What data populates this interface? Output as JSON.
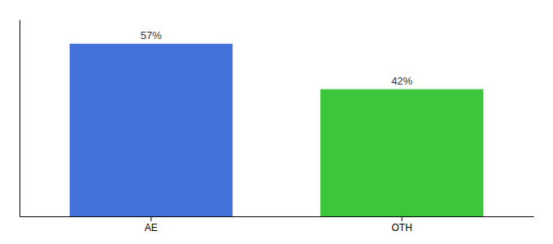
{
  "chart_data": {
    "type": "bar",
    "categories": [
      "AE",
      "OTH"
    ],
    "values": [
      57,
      42
    ],
    "value_labels": [
      "57%",
      "42%"
    ],
    "colors": [
      "#4472db",
      "#3cc63c"
    ],
    "ylim": [
      0,
      65
    ],
    "data_labels": true,
    "tick_labels": "x"
  }
}
